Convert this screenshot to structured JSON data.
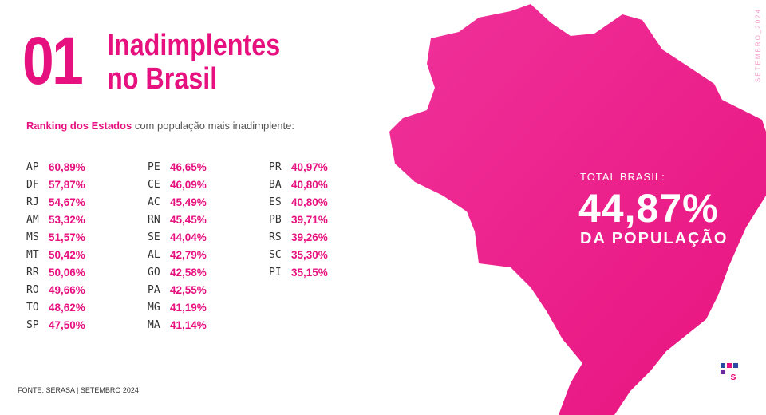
{
  "header": {
    "number": "01",
    "title": [
      "Inadimplentes",
      "no Brasil"
    ]
  },
  "subtitle": {
    "strong": "Ranking dos Estados",
    "rest": "com população mais inadimplente:"
  },
  "rankings": [
    {
      "state": "AP",
      "value": "60,89%"
    },
    {
      "state": "DF",
      "value": "57,87%"
    },
    {
      "state": "RJ",
      "value": "54,67%"
    },
    {
      "state": "AM",
      "value": "53,32%"
    },
    {
      "state": "MS",
      "value": "51,57%"
    },
    {
      "state": "MT",
      "value": "50,42%"
    },
    {
      "state": "RR",
      "value": "50,06%"
    },
    {
      "state": "RO",
      "value": "49,66%"
    },
    {
      "state": "TO",
      "value": "48,62%"
    },
    {
      "state": "SP",
      "value": "47,50%"
    },
    {
      "state": "PE",
      "value": "46,65%"
    },
    {
      "state": "CE",
      "value": "46,09%"
    },
    {
      "state": "AC",
      "value": "45,49%"
    },
    {
      "state": "RN",
      "value": "45,45%"
    },
    {
      "state": "SE",
      "value": "44,04%"
    },
    {
      "state": "AL",
      "value": "42,79%"
    },
    {
      "state": "GO",
      "value": "42,58%"
    },
    {
      "state": "PA",
      "value": "42,55%"
    },
    {
      "state": "MG",
      "value": "41,19%"
    },
    {
      "state": "MA",
      "value": "41,14%"
    },
    {
      "state": "PR",
      "value": "40,97%"
    },
    {
      "state": "BA",
      "value": "40,80%"
    },
    {
      "state": "ES",
      "value": "40,80%"
    },
    {
      "state": "PB",
      "value": "39,71%"
    },
    {
      "state": "RS",
      "value": "39,26%"
    },
    {
      "state": "SC",
      "value": "35,30%"
    },
    {
      "state": "PI",
      "value": "35,15%"
    }
  ],
  "total": {
    "label": "TOTAL BRASIL:",
    "value": "44,87%",
    "caption": "DA POPULAÇÃO"
  },
  "side_text": "SETEMBRO_2024",
  "source": "FONTE: SERASA | SETEMBRO 2024"
}
